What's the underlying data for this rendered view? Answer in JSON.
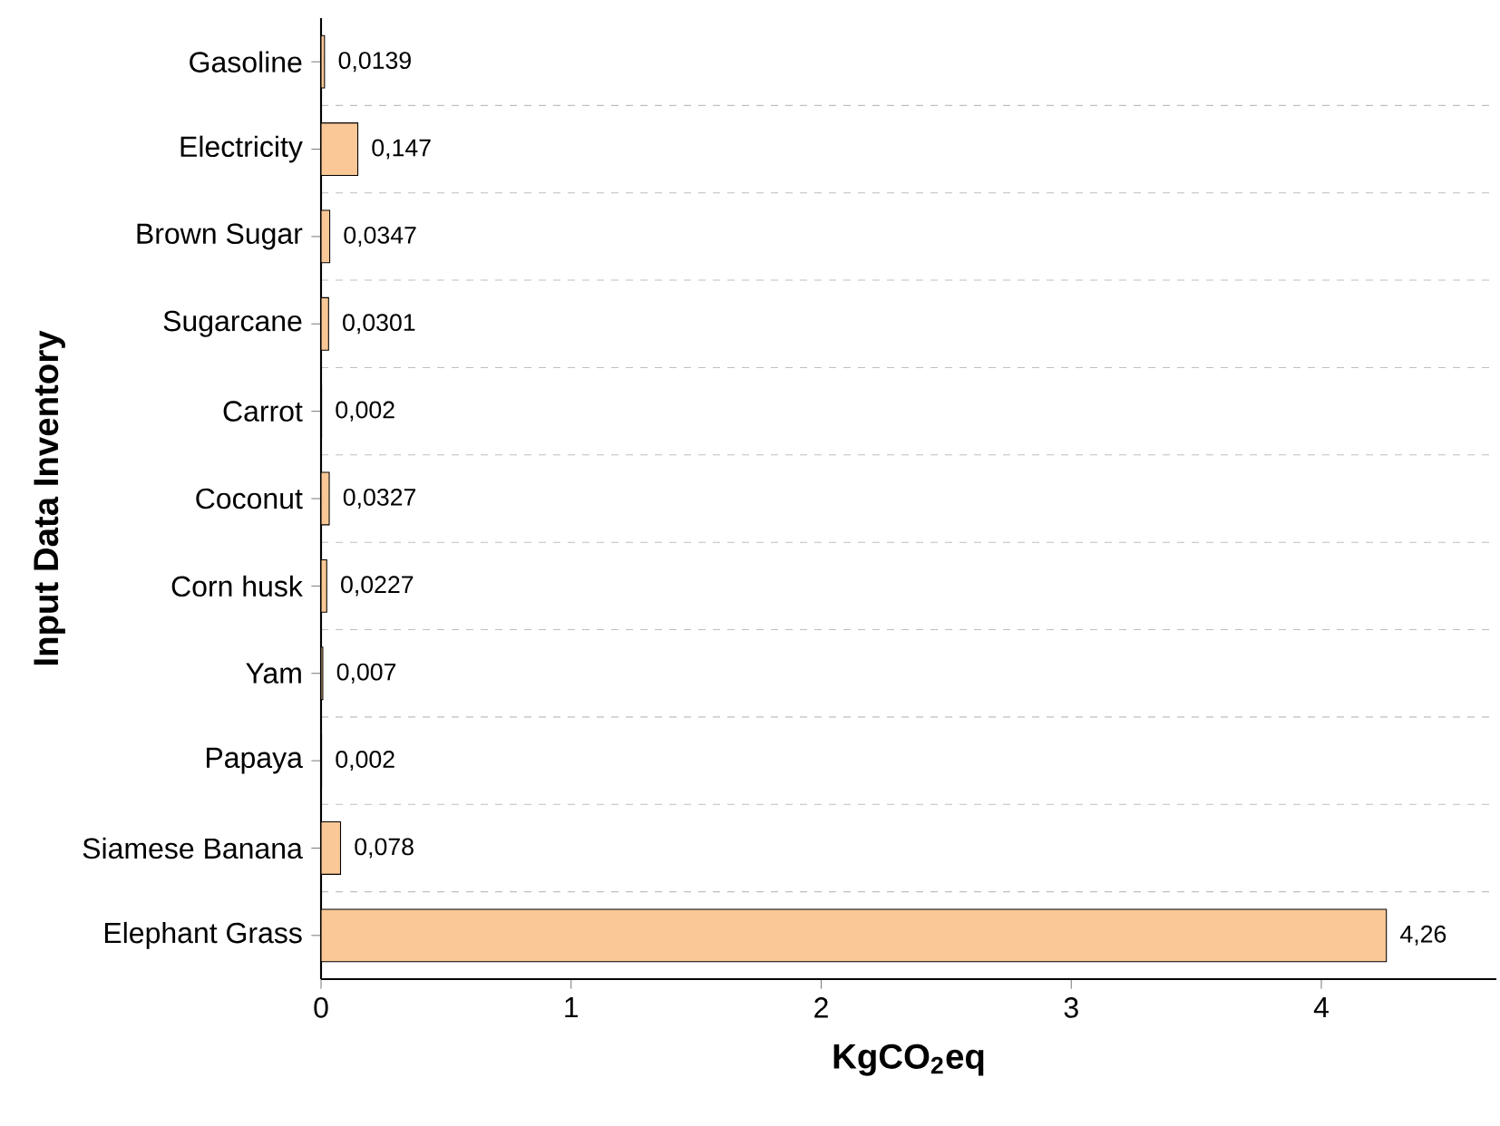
{
  "chart_data": {
    "type": "bar",
    "orientation": "horizontal",
    "xlabel": "KgCO$_{2}$eq",
    "ylabel": "Input Data Inventory",
    "categories": [
      "Gasoline",
      "Electricity",
      "Brown Sugar",
      "Sugarcane",
      "Carrot",
      "Coconut",
      "Corn husk",
      "Yam",
      "Papaya",
      "Siamese Banana",
      "Elephant Grass"
    ],
    "values": [
      0.0139,
      0.147,
      0.0347,
      0.0301,
      0.002,
      0.0327,
      0.0227,
      0.007,
      0.002,
      0.078,
      4.26
    ],
    "value_labels": [
      "0,0139",
      "0,147",
      "0,0347",
      "0,0301",
      "0,002",
      "0,0327",
      "0,0227",
      "0,007",
      "0,002",
      "0,078",
      "4,26"
    ],
    "color": "#fac896",
    "xlim": [
      0,
      4.7
    ],
    "xticks": [
      0,
      1,
      2,
      3,
      4
    ],
    "grid": "y"
  }
}
